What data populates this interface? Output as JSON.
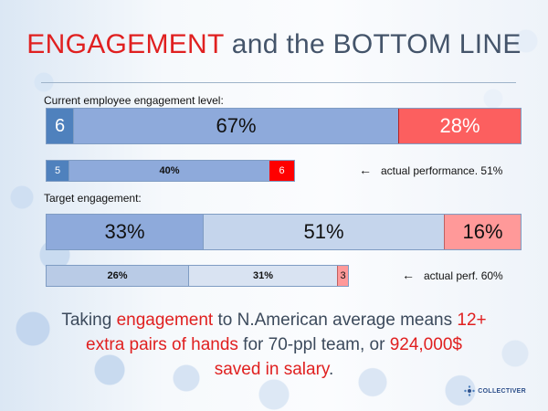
{
  "title": {
    "part1": "ENGAGEMENT",
    "part2": " and the BOTTOM LINE"
  },
  "current": {
    "label": "Current employee engagement level:",
    "bar": [
      "6",
      "67%",
      "28%"
    ],
    "sub_bar": [
      "5",
      "40%",
      "6"
    ],
    "note": "actual performance. 51%"
  },
  "target": {
    "label": "Target engagement:",
    "bar": [
      "33%",
      "51%",
      "16%"
    ],
    "sub_bar": [
      "26%",
      "31%",
      "3"
    ],
    "note": "actual perf. 60%"
  },
  "bottom": {
    "t1": "Taking ",
    "t2": "engagement",
    "t3": " to N.American average means ",
    "t4": "12+",
    "t5": "extra pairs of hands",
    "t6": " for 70-ppl team, or ",
    "t7": "924,000$",
    "t8": "saved in salary",
    "t9": "."
  },
  "logo": {
    "text": "COLLECTIVER"
  },
  "icons": {
    "arrow": "left-arrow-icon",
    "logo": "collectiver-logo-icon"
  },
  "colors": {
    "title_red": "#e02020",
    "dark_blue": "#4f81bd",
    "light_blue": "#8eaadb",
    "pale_blue": "#c5d5ec",
    "red": "#fc5f5f",
    "bright_red": "#ff0000",
    "pink": "#ff9999"
  }
}
